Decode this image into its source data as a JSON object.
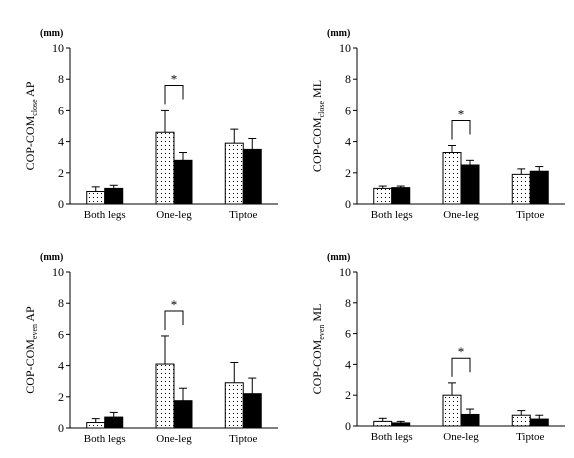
{
  "chart_data": [
    {
      "type": "bar",
      "ylabel_main": "COP-COM",
      "ylabel_sub": "close",
      "ylabel_tail": "AP",
      "unit": "(mm)",
      "ylim": [
        0,
        10
      ],
      "yticks": [
        "0",
        "2",
        "4",
        "6",
        "8",
        "10"
      ],
      "categories": [
        "Both legs",
        "One-leg",
        "Tiptoe"
      ],
      "series": [
        {
          "values": [
            0.8,
            4.6,
            3.9
          ],
          "errors": [
            0.3,
            1.4,
            0.9
          ],
          "fill": "dotted"
        },
        {
          "values": [
            1.0,
            2.8,
            3.5
          ],
          "errors": [
            0.2,
            0.5,
            0.7
          ],
          "fill": "#000000"
        }
      ],
      "significance": {
        "category_index": 1,
        "label": "*"
      },
      "grid": false
    },
    {
      "type": "bar",
      "ylabel_main": "COP-COM",
      "ylabel_sub": "close",
      "ylabel_tail": "ML",
      "unit": "(mm)",
      "ylim": [
        0,
        10
      ],
      "yticks": [
        "0",
        "2",
        "4",
        "6",
        "8",
        "10"
      ],
      "categories": [
        "Both legs",
        "One-leg",
        "Tiptoe"
      ],
      "series": [
        {
          "values": [
            1.0,
            3.3,
            1.9
          ],
          "errors": [
            0.15,
            0.45,
            0.35
          ],
          "fill": "dotted"
        },
        {
          "values": [
            1.05,
            2.5,
            2.1
          ],
          "errors": [
            0.1,
            0.3,
            0.3
          ],
          "fill": "#000000"
        }
      ],
      "significance": {
        "category_index": 1,
        "label": "*"
      },
      "grid": false
    },
    {
      "type": "bar",
      "ylabel_main": "COP-COM",
      "ylabel_sub": "even",
      "ylabel_tail": "AP",
      "unit": "(mm)",
      "ylim": [
        0,
        10
      ],
      "yticks": [
        "0",
        "2",
        "4",
        "6",
        "8",
        "10"
      ],
      "categories": [
        "Both legs",
        "One-leg",
        "Tiptoe"
      ],
      "series": [
        {
          "values": [
            0.35,
            4.1,
            2.9
          ],
          "errors": [
            0.25,
            1.8,
            1.3
          ],
          "fill": "dotted"
        },
        {
          "values": [
            0.7,
            1.75,
            2.2
          ],
          "errors": [
            0.3,
            0.8,
            1.0
          ],
          "fill": "#000000"
        }
      ],
      "significance": {
        "category_index": 1,
        "label": "*"
      },
      "grid": false
    },
    {
      "type": "bar",
      "ylabel_main": "COP-COM",
      "ylabel_sub": "even",
      "ylabel_tail": "ML",
      "unit": "(mm)",
      "ylim": [
        0,
        10
      ],
      "yticks": [
        "0",
        "2",
        "4",
        "6",
        "8",
        "10"
      ],
      "categories": [
        "Both legs",
        "One-leg",
        "Tiptoe"
      ],
      "series": [
        {
          "values": [
            0.3,
            2.0,
            0.7
          ],
          "errors": [
            0.2,
            0.8,
            0.3
          ],
          "fill": "dotted"
        },
        {
          "values": [
            0.2,
            0.75,
            0.45
          ],
          "errors": [
            0.1,
            0.35,
            0.25
          ],
          "fill": "#000000"
        }
      ],
      "significance": {
        "category_index": 1,
        "label": "*"
      },
      "grid": false
    }
  ]
}
